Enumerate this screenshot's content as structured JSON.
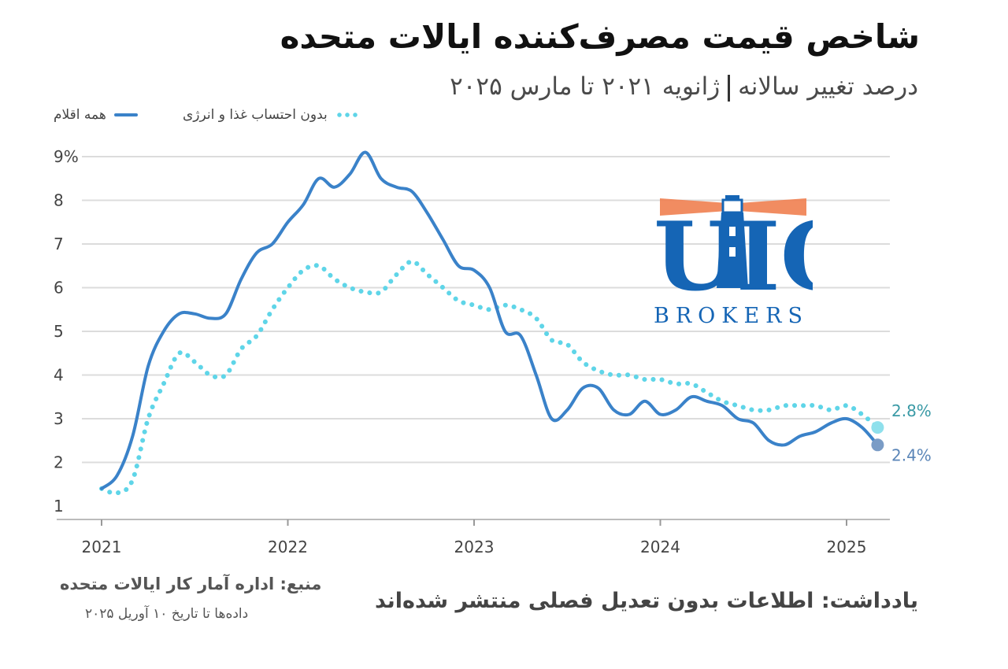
{
  "title": "شاخص قیمت مصرف‌کننده ایالات متحده",
  "subtitle": {
    "measure": "درصد تغییر سالانه",
    "period": "ژانویه ۲۰۲۱ تا مارس ۲۰۲۵"
  },
  "legend": {
    "all_items": "همه اقلام",
    "core": "بدون احتساب غذا و انرژی"
  },
  "source": "منبع: اداره آمار کار ایالات متحده",
  "as_of": "داده‌ها تا تاریخ ۱۰ آوریل ۲۰۲۵",
  "note": "یادداشت: اطلاعات بدون تعدیل فصلی منتشر شده‌اند",
  "logo": {
    "letters": "UIO",
    "sub": "BROKERS"
  },
  "colors": {
    "all_items": "#3a82c9",
    "core": "#5fd5e8",
    "end_all": "#7a9cc6",
    "end_core": "#8fe0ec"
  },
  "chart_data": {
    "type": "line",
    "x_start": "2021-01",
    "x_end": "2025-03",
    "x_ticks": [
      "2021",
      "2022",
      "2023",
      "2024",
      "2025"
    ],
    "y_ticks": [
      "1",
      "2",
      "3",
      "4",
      "5",
      "6",
      "7",
      "8",
      "9%"
    ],
    "ylim": [
      1,
      9
    ],
    "grid": true,
    "legend_position": "top-left",
    "series": [
      {
        "name": "همه اقلام",
        "end_label": "2.4%",
        "values": [
          1.4,
          1.7,
          2.6,
          4.2,
          5.0,
          5.4,
          5.4,
          5.3,
          5.4,
          6.2,
          6.8,
          7.0,
          7.5,
          7.9,
          8.5,
          8.3,
          8.6,
          9.1,
          8.5,
          8.3,
          8.2,
          7.7,
          7.1,
          6.5,
          6.4,
          6.0,
          5.0,
          4.9,
          4.0,
          3.0,
          3.2,
          3.7,
          3.7,
          3.2,
          3.1,
          3.4,
          3.1,
          3.2,
          3.5,
          3.4,
          3.3,
          3.0,
          2.9,
          2.5,
          2.4,
          2.6,
          2.7,
          2.9,
          3.0,
          2.8,
          2.4
        ]
      },
      {
        "name": "بدون احتساب غذا و انرژی",
        "end_label": "2.8%",
        "values": [
          1.4,
          1.3,
          1.6,
          3.0,
          3.8,
          4.5,
          4.3,
          4.0,
          4.0,
          4.6,
          4.9,
          5.5,
          6.0,
          6.4,
          6.5,
          6.2,
          6.0,
          5.9,
          5.9,
          6.3,
          6.6,
          6.3,
          6.0,
          5.7,
          5.6,
          5.5,
          5.6,
          5.5,
          5.3,
          4.8,
          4.7,
          4.3,
          4.1,
          4.0,
          4.0,
          3.9,
          3.9,
          3.8,
          3.8,
          3.6,
          3.4,
          3.3,
          3.2,
          3.2,
          3.3,
          3.3,
          3.3,
          3.2,
          3.3,
          3.1,
          2.8
        ]
      }
    ]
  }
}
